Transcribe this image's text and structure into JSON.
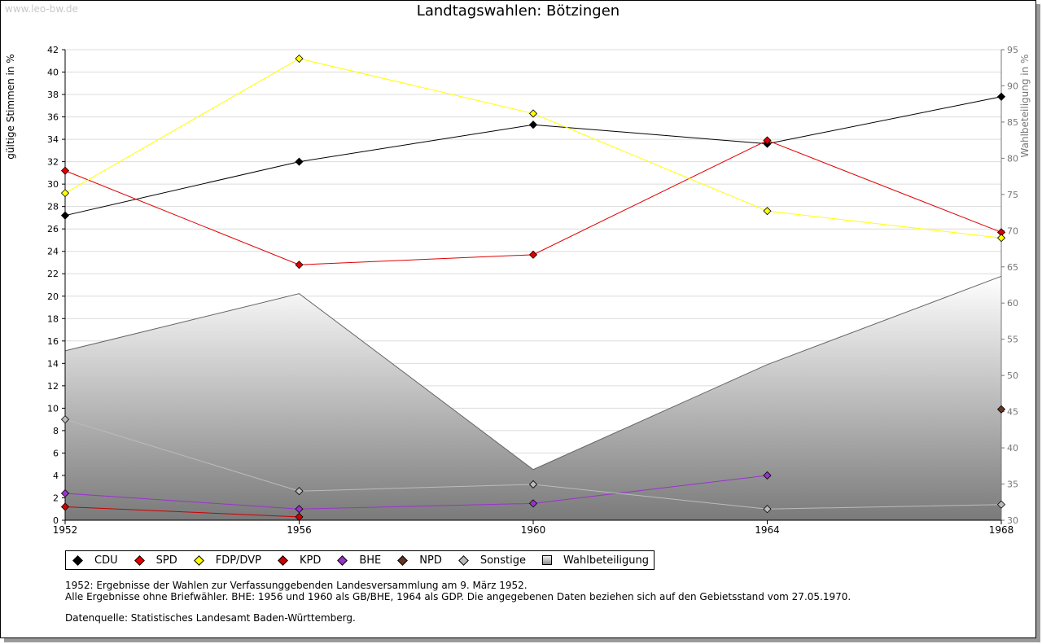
{
  "watermark": "www.leo-bw.de",
  "chart_data": {
    "type": "line",
    "title": "Landtagswahlen: Bötzingen",
    "ylabel": "gültige Stimmen in %",
    "y2label": "Wahlbeteiligung in %",
    "x": [
      "1952",
      "1956",
      "1960",
      "1964",
      "1968"
    ],
    "ylim": [
      0,
      42
    ],
    "y2lim": [
      30,
      95
    ],
    "yticks": [
      "0",
      "2",
      "4",
      "6",
      "8",
      "10",
      "12",
      "14",
      "16",
      "18",
      "20",
      "22",
      "24",
      "26",
      "28",
      "30",
      "32",
      "34",
      "36",
      "38",
      "40",
      "42"
    ],
    "y2ticks": [
      "30",
      "35",
      "40",
      "45",
      "50",
      "55",
      "60",
      "65",
      "70",
      "75",
      "80",
      "85",
      "90",
      "95"
    ],
    "grid": true,
    "legend_placement": "bottom",
    "series": [
      {
        "name": "CDU",
        "color": "#000000",
        "marker": "#000000",
        "values": [
          27.2,
          32.0,
          35.3,
          33.6,
          37.8
        ]
      },
      {
        "name": "SPD",
        "color": "#e00000",
        "marker": "#e00000",
        "values": [
          31.2,
          22.8,
          23.7,
          33.9,
          25.7
        ]
      },
      {
        "name": "FDP/DVP",
        "color": "#ffff00",
        "marker": "#ffff00",
        "values": [
          29.2,
          41.2,
          36.3,
          27.6,
          25.2
        ]
      },
      {
        "name": "KPD",
        "color": "#cc0000",
        "marker": "#cc0000",
        "values": [
          1.2,
          0.3,
          null,
          null,
          null
        ]
      },
      {
        "name": "BHE",
        "color": "#9933cc",
        "marker": "#9933cc",
        "values": [
          2.4,
          1.0,
          1.5,
          4.0,
          null
        ]
      },
      {
        "name": "NPD",
        "color": "#663322",
        "marker": "#663322",
        "values": [
          null,
          null,
          null,
          null,
          9.9
        ]
      },
      {
        "name": "Sonstige",
        "color": "#bbbbbb",
        "marker": "#bbbbbb",
        "values": [
          9.0,
          2.6,
          3.2,
          1.0,
          1.4
        ]
      }
    ],
    "turnout": {
      "name": "Wahlbeteiligung",
      "axis": "right",
      "values": [
        53.4,
        61.3,
        37.0,
        51.5,
        63.7
      ]
    }
  },
  "notes": {
    "line1": "1952: Ergebnisse der Wahlen zur Verfassunggebenden Landesversammlung am 9. März 1952.",
    "line2": "Alle Ergebnisse ohne Briefwähler. BHE: 1956 und 1960 als GB/BHE, 1964 als GDP. Die angegebenen Daten beziehen sich auf den Gebietsstand vom 27.05.1970.",
    "line3": "Datenquelle: Statistisches Landesamt Baden-Württemberg."
  }
}
